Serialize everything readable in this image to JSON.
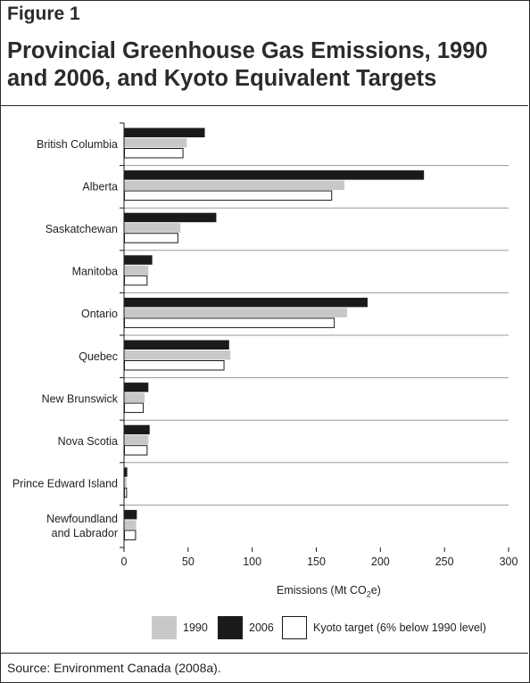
{
  "figure": {
    "label": "Figure 1",
    "title": "Provincial Greenhouse Gas Emissions, 1990 and 2006, and Kyoto Equivalent Targets",
    "source": "Source: Environment Canada (2008a)."
  },
  "chart_data": {
    "type": "bar",
    "orientation": "horizontal",
    "title": "Provincial Greenhouse Gas Emissions, 1990 and 2006, and Kyoto Equivalent Targets",
    "xlabel": "Emissions (Mt CO2e)",
    "xlabel_parts": {
      "before": "Emissions (Mt CO",
      "sub": "2",
      "after": "e)"
    },
    "ylabel": "",
    "xlim": [
      0,
      300
    ],
    "xticks": [
      0,
      50,
      100,
      150,
      200,
      250,
      300
    ],
    "grid": "horizontal separators between provinces",
    "legend_position": "bottom",
    "categories": [
      "British Columbia",
      "Alberta",
      "Saskatchewan",
      "Manitoba",
      "Ontario",
      "Quebec",
      "New Brunswick",
      "Nova Scotia",
      "Prince Edward Island",
      "Newfoundland and Labrador"
    ],
    "category_lines": [
      [
        "British Columbia"
      ],
      [
        "Alberta"
      ],
      [
        "Saskatchewan"
      ],
      [
        "Manitoba"
      ],
      [
        "Ontario"
      ],
      [
        "Quebec"
      ],
      [
        "New Brunswick"
      ],
      [
        "Nova Scotia"
      ],
      [
        "Prince Edward Island"
      ],
      [
        "Newfoundland",
        "and Labrador"
      ]
    ],
    "series": [
      {
        "name": "2006",
        "color": "#1a1a1a",
        "stroke": "#1a1a1a",
        "values": [
          63,
          234,
          72,
          22,
          190,
          82,
          19,
          20,
          2.5,
          10
        ]
      },
      {
        "name": "1990",
        "color": "#c8c8c8",
        "stroke": "#c8c8c8",
        "values": [
          49,
          172,
          44,
          19,
          174,
          83,
          16,
          19,
          2,
          9.5
        ]
      },
      {
        "name": "Kyoto target (6% below 1990 level)",
        "color": "#ffffff",
        "stroke": "#1a1a1a",
        "values": [
          46,
          162,
          42,
          18,
          164,
          78,
          15,
          18,
          2,
          9
        ]
      }
    ]
  },
  "legend": {
    "items": [
      {
        "label": "1990",
        "color": "#c8c8c8",
        "stroke": "#c8c8c8"
      },
      {
        "label": "2006",
        "color": "#1a1a1a",
        "stroke": "#1a1a1a"
      },
      {
        "label": "Kyoto target (6% below 1990 level)",
        "color": "#ffffff",
        "stroke": "#1a1a1a"
      }
    ]
  }
}
